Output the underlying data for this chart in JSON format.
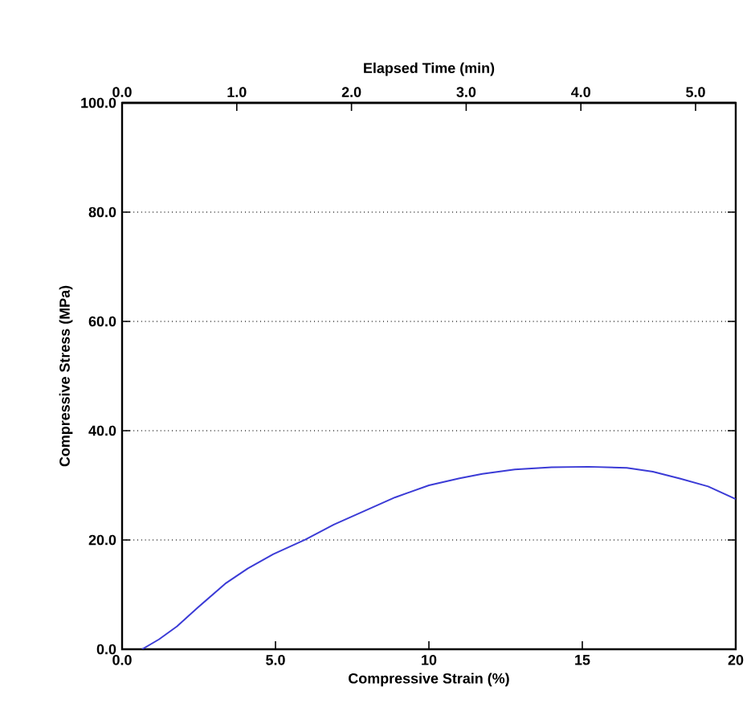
{
  "chart_data": {
    "type": "line",
    "xlabel": "Compressive Strain (%)",
    "ylabel": "Compressive Stress (MPa)",
    "x2label": "Elapsed Time (min)",
    "series": [
      {
        "color": "#3b3bd6",
        "x": [
          0.65,
          1.2,
          1.79,
          2.5,
          3.36,
          4.1,
          4.93,
          5.98,
          6.9,
          7.9,
          8.9,
          10.0,
          11.0,
          11.74,
          12.8,
          14.0,
          15.2,
          16.45,
          17.3,
          18.2,
          19.1,
          20.0
        ],
        "values": [
          0,
          1.8,
          4.2,
          7.8,
          12.0,
          14.8,
          17.4,
          20.1,
          22.8,
          25.3,
          27.8,
          30.0,
          31.3,
          32.1,
          32.9,
          33.3,
          33.4,
          33.2,
          32.5,
          31.2,
          29.8,
          27.5
        ]
      }
    ],
    "xlim": [
      0,
      20
    ],
    "xticks": [
      {
        "value": 0,
        "label": "0.0"
      },
      {
        "value": 5,
        "label": "5.0"
      },
      10,
      15,
      20
    ],
    "x2lim": [
      0,
      5.35
    ],
    "x2ticks": [
      {
        "value": 0,
        "label": "0.0"
      },
      {
        "value": 1,
        "label": "1.0"
      },
      {
        "value": 2,
        "label": "2.0"
      },
      {
        "value": 3,
        "label": "3.0"
      },
      {
        "value": 4,
        "label": "4.0"
      },
      {
        "value": 5,
        "label": "5.0"
      }
    ],
    "ylim": [
      0,
      100
    ],
    "yticks": [
      {
        "value": 0,
        "label": "0.0"
      },
      {
        "value": 20,
        "label": "20.0"
      },
      {
        "value": 40,
        "label": "40.0"
      },
      {
        "value": 60,
        "label": "60.0"
      },
      {
        "value": 80,
        "label": "80.0"
      },
      {
        "value": 100,
        "label": "100.0"
      }
    ],
    "grid": "y",
    "marker": "none",
    "line_style": "solid"
  }
}
